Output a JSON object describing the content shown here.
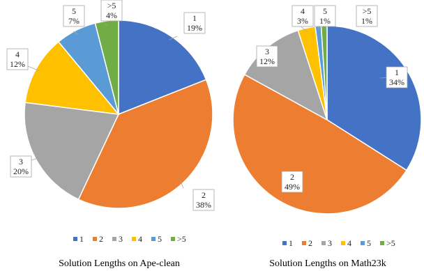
{
  "chart_data": [
    {
      "type": "pie",
      "title": "Solution Lengths on Ape-clean",
      "categories": [
        "1",
        "2",
        "3",
        "4",
        "5",
        ">5"
      ],
      "values": [
        19,
        38,
        20,
        12,
        7,
        4
      ],
      "value_labels": [
        "19%",
        "38%",
        "20%",
        "12%",
        "7%",
        "4%"
      ],
      "colors": [
        "#4472C4",
        "#ED7D31",
        "#A5A5A5",
        "#FFC000",
        "#5B9BD5",
        "#70AD47"
      ],
      "legend": "bottom"
    },
    {
      "type": "pie",
      "title": "Solution Lengths on Math23k",
      "categories": [
        "1",
        "2",
        "3",
        "4",
        "5",
        ">5"
      ],
      "values": [
        34,
        49,
        12,
        3,
        1,
        1
      ],
      "value_labels": [
        "34%",
        "49%",
        "12%",
        "3%",
        "1%",
        "1%"
      ],
      "colors": [
        "#4472C4",
        "#ED7D31",
        "#A5A5A5",
        "#FFC000",
        "#5B9BD5",
        "#70AD47"
      ],
      "legend": "bottom"
    }
  ]
}
